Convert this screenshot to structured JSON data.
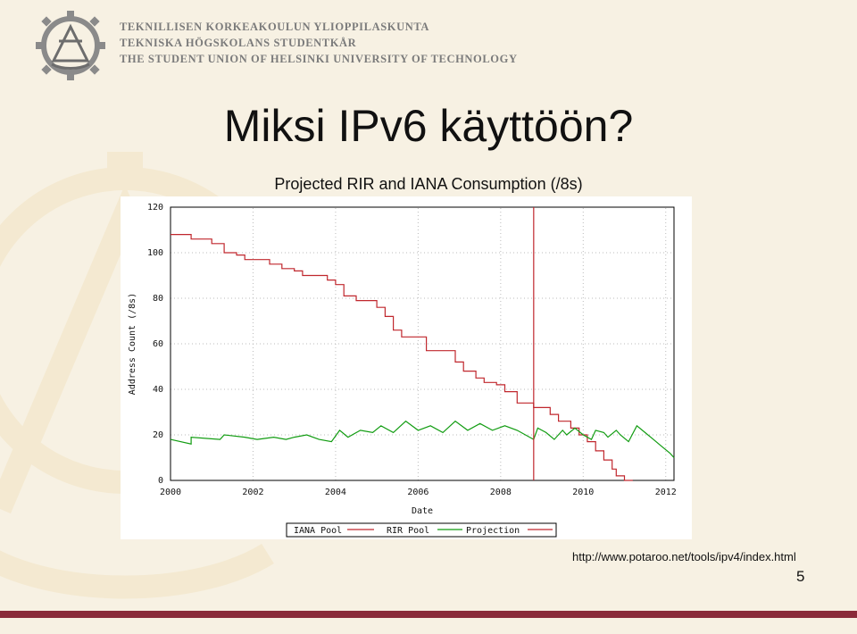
{
  "header": {
    "org_line_1": "TEKNILLISEN KORKEAKOULUN YLIOPPILASKUNTA",
    "org_line_2": "TEKNISKA HÖGSKOLANS STUDENTKÅR",
    "org_line_3": "THE STUDENT UNION OF HELSINKI UNIVERSITY OF TECHNOLOGY",
    "logo_icon": "gear-emblem-icon"
  },
  "slide": {
    "title": "Miksi IPv6 käyttöön?",
    "chart_caption": "Projected RIR and IANA Consumption (/8s)",
    "source_url": "http://www.potaroo.net/tools/ipv4/index.html",
    "page_number": "5"
  },
  "colors": {
    "background": "#f7f1e3",
    "accent_bar": "#8a2b3a",
    "iana_series": "#c0272d",
    "rir_series": "#119c11",
    "projection_marker": "#c0272d"
  },
  "chart_data": {
    "type": "line",
    "xlabel": "Date",
    "ylabel": "Address Count (/8s)",
    "xlim": [
      2000,
      2012.2
    ],
    "ylim": [
      0,
      120
    ],
    "x_ticks": [
      "2000",
      "2002",
      "2004",
      "2006",
      "2008",
      "2010",
      "2012"
    ],
    "y_ticks": [
      "0",
      "20",
      "40",
      "60",
      "80",
      "100",
      "120"
    ],
    "grid": true,
    "legend_position": "bottom",
    "projection_start_x": 2008.8,
    "series": [
      {
        "name": "IANA Pool",
        "x": [
          2000,
          2000.5,
          2000.5,
          2001,
          2001,
          2001.3,
          2001.3,
          2001.6,
          2001.6,
          2001.8,
          2001.8,
          2002.4,
          2002.4,
          2002.7,
          2002.7,
          2003.0,
          2003.0,
          2003.2,
          2003.2,
          2003.8,
          2003.8,
          2004.0,
          2004.0,
          2004.2,
          2004.2,
          2004.5,
          2004.5,
          2005.0,
          2005.0,
          2005.2,
          2005.2,
          2005.4,
          2005.4,
          2005.6,
          2005.6,
          2006.2,
          2006.2,
          2006.9,
          2006.9,
          2007.1,
          2007.1,
          2007.4,
          2007.4,
          2007.6,
          2007.6,
          2007.9,
          2007.9,
          2008.1,
          2008.1,
          2008.4,
          2008.4,
          2008.8,
          2008.8,
          2009.2,
          2009.2,
          2009.4,
          2009.4,
          2009.7,
          2009.7,
          2009.9,
          2009.9,
          2010.1,
          2010.1,
          2010.3,
          2010.3,
          2010.5,
          2010.5,
          2010.7,
          2010.7,
          2010.8,
          2010.8,
          2011.0,
          2011.0,
          2011.2,
          2011.2
        ],
        "values": [
          108,
          108,
          106,
          106,
          104,
          104,
          100,
          100,
          99,
          99,
          97,
          97,
          95,
          95,
          93,
          93,
          92,
          92,
          90,
          90,
          88,
          88,
          86,
          86,
          81,
          81,
          79,
          79,
          76,
          76,
          72,
          72,
          66,
          66,
          63,
          63,
          57,
          57,
          52,
          52,
          48,
          48,
          45,
          45,
          43,
          43,
          42,
          42,
          39,
          39,
          34,
          34,
          32,
          32,
          29,
          29,
          26,
          26,
          23,
          23,
          20,
          20,
          17,
          17,
          13,
          13,
          9,
          9,
          5,
          5,
          2,
          2,
          0,
          0,
          0
        ]
      },
      {
        "name": "RIR Pool",
        "x": [
          2000,
          2000.5,
          2000.5,
          2001.2,
          2001.3,
          2001.8,
          2002.1,
          2002.5,
          2002.8,
          2003.0,
          2003.3,
          2003.6,
          2003.9,
          2004.1,
          2004.3,
          2004.6,
          2004.9,
          2005.1,
          2005.4,
          2005.7,
          2006.0,
          2006.3,
          2006.6,
          2006.9,
          2007.2,
          2007.5,
          2007.8,
          2008.1,
          2008.4,
          2008.8
        ],
        "values": [
          18,
          16,
          19,
          18,
          20,
          19,
          18,
          19,
          18,
          19,
          20,
          18,
          17,
          22,
          19,
          22,
          21,
          24,
          21,
          26,
          22,
          24,
          21,
          26,
          22,
          25,
          22,
          24,
          22,
          18
        ]
      },
      {
        "name": "Projection",
        "x": [
          2008.8,
          2008.9,
          2009.1,
          2009.3,
          2009.5,
          2009.6,
          2009.8,
          2010.0,
          2010.2,
          2010.3,
          2010.5,
          2010.6,
          2010.8,
          2010.9,
          2011.1,
          2011.3,
          2011.5,
          2011.7,
          2011.9,
          2012.1,
          2012.2
        ],
        "values": [
          18,
          23,
          21,
          18,
          22,
          20,
          23,
          20,
          18,
          22,
          21,
          19,
          22,
          20,
          17,
          24,
          21,
          18,
          15,
          12,
          10
        ]
      }
    ]
  },
  "legend": {
    "iana_label": "IANA Pool",
    "rir_label": "RIR Pool",
    "projection_label": "Projection"
  }
}
